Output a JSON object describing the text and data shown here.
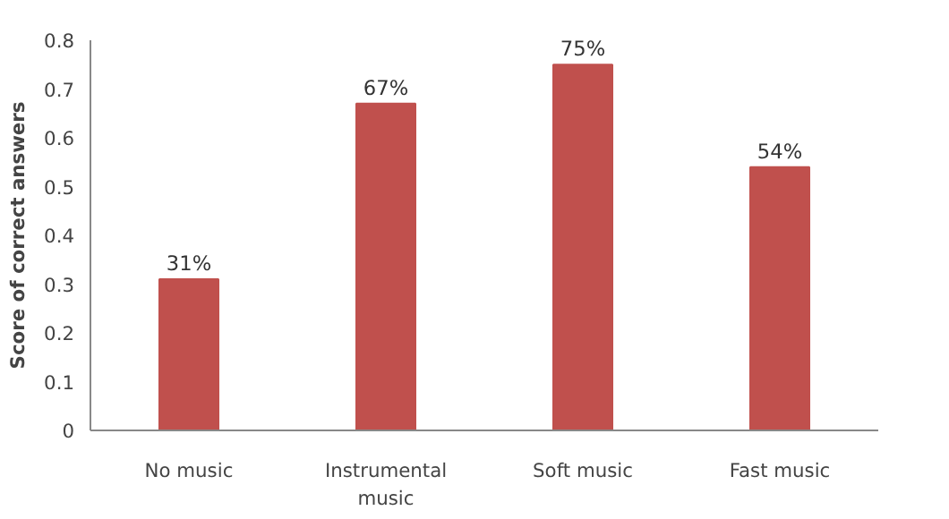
{
  "chart_data": {
    "type": "bar",
    "ylabel": "Score of correct answers",
    "categories": [
      "No music",
      "Instrumental music",
      "Soft music",
      "Fast music"
    ],
    "values": [
      0.31,
      0.67,
      0.75,
      0.54
    ],
    "value_labels": [
      "31%",
      "67%",
      "75%",
      "54%"
    ],
    "color": "#c0504d",
    "ylim": [
      0,
      0.8
    ],
    "yticks": [
      0,
      0.1,
      0.2,
      0.3,
      0.4,
      0.5,
      0.6,
      0.7,
      0.8
    ],
    "grid": false
  }
}
